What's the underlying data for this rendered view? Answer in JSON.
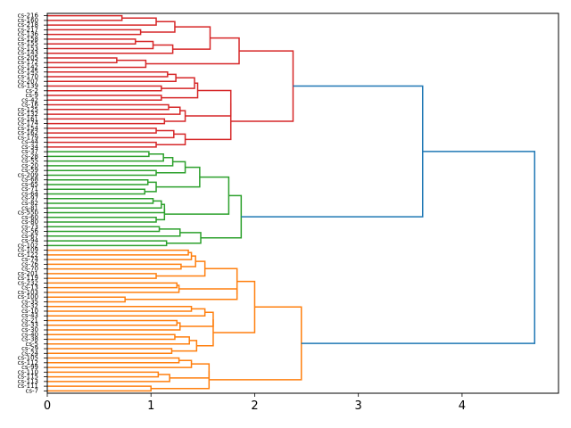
{
  "chart_data": {
    "type": "dendrogram",
    "orientation": "horizontal",
    "title": "",
    "xlabel": "",
    "ylabel": "",
    "xlim": [
      0,
      4.93
    ],
    "xticks": [
      0,
      1,
      2,
      3,
      4
    ],
    "xtick_labels": [
      "0",
      "1",
      "2",
      "3",
      "4"
    ],
    "colors": {
      "red": "#d62728",
      "green": "#2ca02c",
      "orange": "#ff7f0e",
      "link_above_threshold": "#1f77b4",
      "axes": "#000000"
    },
    "leaves": [
      "cs-216",
      "cs-160",
      "cs-218",
      "cs-217",
      "cs-136",
      "cs-158",
      "cs-155",
      "cs-153",
      "cs-143",
      "cs-205",
      "cs-172",
      "cs-142",
      "cs-145",
      "cs-170",
      "cs-207",
      "cs-139",
      "cs-2",
      "cs-9",
      "cs-42",
      "cs-16",
      "cs-125",
      "cs-132",
      "cs-161",
      "cs-174",
      "cs-154",
      "cs-162",
      "cs-179",
      "cs-44",
      "cs-34",
      "cs-37",
      "cs-28",
      "cs-55",
      "cs-20",
      "cs-59",
      "cs-209",
      "cs-68",
      "cs-65",
      "cs-71",
      "cs-64",
      "cs-97",
      "cs-82",
      "cs-81",
      "cs-55b",
      "cs-60",
      "cs-80",
      "cs-73",
      "cs-56",
      "cs-67",
      "cs-94",
      "cs-102",
      "cs-109",
      "cs-122",
      "cs-74",
      "cs-76",
      "cs-70",
      "cs-201",
      "cs-119",
      "cs-232",
      "cs-13",
      "cs-103",
      "cs-100",
      "cs-35",
      "cs-32",
      "cs-10",
      "cs-43",
      "cs-21",
      "cs-33",
      "cs-30",
      "cs-40",
      "cs-38",
      "cs-5",
      "cs-29",
      "cs-24",
      "cs-105",
      "cs-112",
      "cs-99",
      "cs-110",
      "cs-115",
      "cs-113",
      "cs-111",
      "cs-7"
    ],
    "links": [
      {
        "x": [
          0.0,
          0.72,
          0.72,
          0.0
        ],
        "y": [
          1.0,
          1.0,
          2.0,
          2.0
        ],
        "color": "red"
      },
      {
        "x": [
          0.72,
          1.05,
          1.05,
          0.0
        ],
        "y": [
          1.5,
          1.5,
          3.0,
          3.0
        ],
        "color": "red"
      },
      {
        "x": [
          0.0,
          0.9,
          0.9,
          0.0
        ],
        "y": [
          4.0,
          4.0,
          5.0,
          5.0
        ],
        "color": "red"
      },
      {
        "x": [
          1.05,
          1.23,
          1.23,
          0.9
        ],
        "y": [
          2.25,
          2.25,
          4.5,
          4.5
        ],
        "color": "red"
      },
      {
        "x": [
          0.0,
          0.85,
          0.85,
          0.0
        ],
        "y": [
          6.0,
          6.0,
          7.0,
          7.0
        ],
        "color": "red"
      },
      {
        "x": [
          0.85,
          1.02,
          1.02,
          0.0
        ],
        "y": [
          6.5,
          6.5,
          8.0,
          8.0
        ],
        "color": "red"
      },
      {
        "x": [
          1.02,
          1.21,
          1.21,
          0.0
        ],
        "y": [
          7.25,
          7.25,
          9.0,
          9.0
        ],
        "color": "red"
      },
      {
        "x": [
          1.23,
          1.57,
          1.57,
          1.21
        ],
        "y": [
          3.375,
          3.375,
          8.125,
          8.125
        ],
        "color": "red"
      },
      {
        "x": [
          0.0,
          0.67,
          0.67,
          0.0
        ],
        "y": [
          10.0,
          10.0,
          11.0,
          11.0
        ],
        "color": "red"
      },
      {
        "x": [
          0.67,
          0.95,
          0.95,
          0.0
        ],
        "y": [
          10.5,
          10.5,
          12.0,
          12.0
        ],
        "color": "red"
      },
      {
        "x": [
          1.57,
          1.85,
          1.85,
          0.95
        ],
        "y": [
          5.75,
          5.75,
          11.25,
          11.25
        ],
        "color": "red"
      },
      {
        "x": [
          0.0,
          1.16,
          1.16,
          0.0
        ],
        "y": [
          13.0,
          13.0,
          14.0,
          14.0
        ],
        "color": "red"
      },
      {
        "x": [
          1.16,
          1.24,
          1.24,
          0.0
        ],
        "y": [
          13.5,
          13.5,
          15.0,
          15.0
        ],
        "color": "red"
      },
      {
        "x": [
          0.0,
          1.1,
          1.1,
          0.0
        ],
        "y": [
          16.0,
          16.0,
          17.0,
          17.0
        ],
        "color": "red"
      },
      {
        "x": [
          1.24,
          1.42,
          1.42,
          1.1
        ],
        "y": [
          14.25,
          14.25,
          16.5,
          16.5
        ],
        "color": "red"
      },
      {
        "x": [
          0.0,
          1.1,
          1.1,
          0.0
        ],
        "y": [
          18.0,
          18.0,
          19.0,
          19.0
        ],
        "color": "red"
      },
      {
        "x": [
          1.42,
          1.45,
          1.45,
          1.1
        ],
        "y": [
          15.375,
          15.375,
          18.5,
          18.5
        ],
        "color": "red"
      },
      {
        "x": [
          0.0,
          1.17,
          1.17,
          0.0
        ],
        "y": [
          20.0,
          20.0,
          21.0,
          21.0
        ],
        "color": "red"
      },
      {
        "x": [
          1.17,
          1.28,
          1.28,
          0.0
        ],
        "y": [
          20.5,
          20.5,
          22.0,
          22.0
        ],
        "color": "red"
      },
      {
        "x": [
          0.0,
          1.13,
          1.13,
          0.0
        ],
        "y": [
          23.0,
          23.0,
          24.0,
          24.0
        ],
        "color": "red"
      },
      {
        "x": [
          1.28,
          1.33,
          1.33,
          1.13
        ],
        "y": [
          21.25,
          21.25,
          23.5,
          23.5
        ],
        "color": "red"
      },
      {
        "x": [
          1.45,
          1.77,
          1.77,
          1.33
        ],
        "y": [
          16.9375,
          16.9375,
          22.375,
          22.375
        ],
        "color": "red"
      },
      {
        "x": [
          0.0,
          1.05,
          1.05,
          0.0
        ],
        "y": [
          25.0,
          25.0,
          26.0,
          26.0
        ],
        "color": "red"
      },
      {
        "x": [
          1.05,
          1.22,
          1.22,
          0.0
        ],
        "y": [
          25.5,
          25.5,
          27.0,
          27.0
        ],
        "color": "red"
      },
      {
        "x": [
          0.0,
          1.05,
          1.05,
          0.0
        ],
        "y": [
          28.0,
          28.0,
          29.0,
          29.0
        ],
        "color": "red"
      },
      {
        "x": [
          1.22,
          1.33,
          1.33,
          1.05
        ],
        "y": [
          26.25,
          26.25,
          28.5,
          28.5
        ],
        "color": "red"
      },
      {
        "x": [
          1.77,
          1.77,
          1.77,
          1.33
        ],
        "y": [
          19.65625,
          19.65625,
          27.375,
          27.375
        ],
        "color": "red"
      },
      {
        "x": [
          1.85,
          2.37,
          2.37,
          1.77
        ],
        "y": [
          8.5,
          8.5,
          23.515625,
          23.515625
        ],
        "color": "red"
      },
      {
        "x": [
          0.0,
          0.98,
          0.98,
          0.0
        ],
        "y": [
          30.0,
          30.0,
          31.0,
          31.0
        ],
        "color": "green"
      },
      {
        "x": [
          0.98,
          1.12,
          1.12,
          0.0
        ],
        "y": [
          30.5,
          30.5,
          32.0,
          32.0
        ],
        "color": "green"
      },
      {
        "x": [
          1.12,
          1.21,
          1.21,
          0.0
        ],
        "y": [
          31.25,
          31.25,
          33.0,
          33.0
        ],
        "color": "green"
      },
      {
        "x": [
          0.0,
          1.05,
          1.05,
          0.0
        ],
        "y": [
          34.0,
          34.0,
          35.0,
          35.0
        ],
        "color": "green"
      },
      {
        "x": [
          1.21,
          1.33,
          1.33,
          1.05
        ],
        "y": [
          32.125,
          32.125,
          34.5,
          34.5
        ],
        "color": "green"
      },
      {
        "x": [
          0.0,
          0.97,
          0.97,
          0.0
        ],
        "y": [
          36.0,
          36.0,
          37.0,
          37.0
        ],
        "color": "green"
      },
      {
        "x": [
          0.0,
          0.94,
          0.94,
          0.0
        ],
        "y": [
          38.0,
          38.0,
          39.0,
          39.0
        ],
        "color": "green"
      },
      {
        "x": [
          0.97,
          1.05,
          1.05,
          0.94
        ],
        "y": [
          36.5,
          36.5,
          38.5,
          38.5
        ],
        "color": "green"
      },
      {
        "x": [
          1.33,
          1.47,
          1.47,
          1.05
        ],
        "y": [
          33.3125,
          33.3125,
          37.5,
          37.5
        ],
        "color": "green"
      },
      {
        "x": [
          0.0,
          1.02,
          1.02,
          0.0
        ],
        "y": [
          40.0,
          40.0,
          41.0,
          41.0
        ],
        "color": "green"
      },
      {
        "x": [
          1.02,
          1.1,
          1.1,
          0.0
        ],
        "y": [
          40.5,
          40.5,
          42.0,
          42.0
        ],
        "color": "green"
      },
      {
        "x": [
          1.1,
          1.13,
          1.13,
          0.0
        ],
        "y": [
          41.25,
          41.25,
          43.0,
          43.0
        ],
        "color": "green"
      },
      {
        "x": [
          0.0,
          1.05,
          1.05,
          0.0
        ],
        "y": [
          44.0,
          44.0,
          45.0,
          45.0
        ],
        "color": "green"
      },
      {
        "x": [
          1.13,
          1.13,
          1.13,
          1.05
        ],
        "y": [
          42.125,
          42.125,
          44.5,
          44.5
        ],
        "color": "green"
      },
      {
        "x": [
          1.47,
          1.75,
          1.75,
          1.13
        ],
        "y": [
          35.40625,
          35.40625,
          43.3125,
          43.3125
        ],
        "color": "green"
      },
      {
        "x": [
          0.0,
          1.08,
          1.08,
          0.0
        ],
        "y": [
          46.0,
          46.0,
          47.0,
          47.0
        ],
        "color": "green"
      },
      {
        "x": [
          1.08,
          1.28,
          1.28,
          0.0
        ],
        "y": [
          46.5,
          46.5,
          48.0,
          48.0
        ],
        "color": "green"
      },
      {
        "x": [
          0.0,
          1.15,
          1.15,
          0.0
        ],
        "y": [
          49.0,
          49.0,
          50.0,
          50.0
        ],
        "color": "green"
      },
      {
        "x": [
          1.28,
          1.48,
          1.48,
          1.15
        ],
        "y": [
          47.25,
          47.25,
          49.5,
          49.5
        ],
        "color": "green"
      },
      {
        "x": [
          1.75,
          1.87,
          1.87,
          1.48
        ],
        "y": [
          39.359375,
          39.359375,
          48.375,
          48.375
        ],
        "color": "green"
      },
      {
        "x": [
          0.0,
          1.36,
          1.36,
          0.0
        ],
        "y": [
          51.0,
          51.0,
          52.0,
          52.0
        ],
        "color": "orange"
      },
      {
        "x": [
          1.36,
          1.39,
          1.39,
          0.0
        ],
        "y": [
          51.5,
          51.5,
          53.0,
          53.0
        ],
        "color": "orange"
      },
      {
        "x": [
          0.0,
          1.29,
          1.29,
          0.0
        ],
        "y": [
          54.0,
          54.0,
          55.0,
          55.0
        ],
        "color": "orange"
      },
      {
        "x": [
          1.39,
          1.43,
          1.43,
          1.29
        ],
        "y": [
          52.25,
          52.25,
          54.5,
          54.5
        ],
        "color": "orange"
      },
      {
        "x": [
          0.0,
          1.05,
          1.05,
          0.0
        ],
        "y": [
          56.0,
          56.0,
          57.0,
          57.0
        ],
        "color": "orange"
      },
      {
        "x": [
          1.43,
          1.52,
          1.52,
          1.05
        ],
        "y": [
          53.375,
          53.375,
          56.5,
          56.5
        ],
        "color": "orange"
      },
      {
        "x": [
          0.0,
          1.25,
          1.25,
          0.0
        ],
        "y": [
          58.0,
          58.0,
          59.0,
          59.0
        ],
        "color": "orange"
      },
      {
        "x": [
          1.25,
          1.27,
          1.27,
          0.0
        ],
        "y": [
          58.5,
          58.5,
          60.0,
          60.0
        ],
        "color": "orange"
      },
      {
        "x": [
          0.0,
          0.75,
          0.75,
          0.0
        ],
        "y": [
          61.0,
          61.0,
          62.0,
          62.0
        ],
        "color": "orange"
      },
      {
        "x": [
          1.27,
          1.83,
          1.83,
          0.75
        ],
        "y": [
          59.25,
          59.25,
          61.5,
          61.5
        ],
        "color": "orange"
      },
      {
        "x": [
          1.52,
          1.83,
          1.83,
          1.83
        ],
        "y": [
          54.9375,
          54.9375,
          60.375,
          60.375
        ],
        "color": "orange"
      },
      {
        "x": [
          0.0,
          1.39,
          1.39,
          0.0
        ],
        "y": [
          63.0,
          63.0,
          64.0,
          64.0
        ],
        "color": "orange"
      },
      {
        "x": [
          0.0,
          1.25,
          1.25,
          0.0
        ],
        "y": [
          66.0,
          66.0,
          67.0,
          67.0
        ],
        "color": "orange"
      },
      {
        "x": [
          1.25,
          1.28,
          1.28,
          0.0
        ],
        "y": [
          66.5,
          66.5,
          68.0,
          68.0
        ],
        "color": "orange"
      },
      {
        "x": [
          1.39,
          1.52,
          1.52,
          0.0
        ],
        "y": [
          63.5,
          63.5,
          65.0,
          65.0
        ],
        "color": "orange"
      },
      {
        "x": [
          1.52,
          1.6,
          1.6,
          1.28
        ],
        "y": [
          64.25,
          64.25,
          67.25,
          67.25
        ],
        "color": "orange"
      },
      {
        "x": [
          0.0,
          1.23,
          1.23,
          0.0
        ],
        "y": [
          69.0,
          69.0,
          70.0,
          70.0
        ],
        "color": "orange"
      },
      {
        "x": [
          1.23,
          1.37,
          1.37,
          0.0
        ],
        "y": [
          69.5,
          69.5,
          71.0,
          71.0
        ],
        "color": "orange"
      },
      {
        "x": [
          0.0,
          1.2,
          1.2,
          0.0
        ],
        "y": [
          72.0,
          72.0,
          73.0,
          73.0
        ],
        "color": "orange"
      },
      {
        "x": [
          1.37,
          1.44,
          1.44,
          1.2
        ],
        "y": [
          70.25,
          70.25,
          72.5,
          72.5
        ],
        "color": "orange"
      },
      {
        "x": [
          1.6,
          1.6,
          1.6,
          1.44
        ],
        "y": [
          65.75,
          65.75,
          71.375,
          71.375
        ],
        "color": "orange"
      },
      {
        "x": [
          1.83,
          2.0,
          2.0,
          1.6
        ],
        "y": [
          57.65625,
          57.65625,
          68.5625,
          68.5625
        ],
        "color": "orange"
      },
      {
        "x": [
          0.0,
          1.27,
          1.27,
          0.0
        ],
        "y": [
          74.0,
          74.0,
          75.0,
          75.0
        ],
        "color": "orange"
      },
      {
        "x": [
          1.27,
          1.39,
          1.39,
          0.0
        ],
        "y": [
          74.5,
          74.5,
          76.0,
          76.0
        ],
        "color": "orange"
      },
      {
        "x": [
          0.0,
          1.07,
          1.07,
          0.0
        ],
        "y": [
          77.0,
          77.0,
          78.0,
          78.0
        ],
        "color": "orange"
      },
      {
        "x": [
          1.07,
          1.18,
          1.18,
          0.0
        ],
        "y": [
          77.5,
          77.5,
          79.0,
          79.0
        ],
        "color": "orange"
      },
      {
        "x": [
          1.39,
          1.56,
          1.56,
          1.18
        ],
        "y": [
          75.25,
          75.25,
          78.25,
          78.25
        ],
        "color": "orange"
      },
      {
        "x": [
          0.0,
          1.0,
          1.0,
          0.0
        ],
        "y": [
          80.0,
          80.0,
          81.0,
          81.0
        ],
        "color": "orange"
      },
      {
        "x": [
          1.56,
          1.56,
          1.56,
          1.0
        ],
        "y": [
          76.75,
          76.75,
          80.5,
          80.5
        ],
        "color": "orange"
      },
      {
        "x": [
          2.0,
          2.45,
          2.45,
          1.56
        ],
        "y": [
          63.109375,
          63.109375,
          78.625,
          78.625
        ],
        "color": "orange"
      },
      {
        "x": [
          2.37,
          3.62,
          3.62,
          1.87
        ],
        "y": [
          16.0078125,
          16.0078125,
          43.8671875,
          43.8671875
        ],
        "color": "link_above_threshold"
      },
      {
        "x": [
          3.62,
          4.7,
          4.7,
          2.45
        ],
        "y": [
          29.9375,
          29.9375,
          70.8671875,
          70.8671875
        ],
        "color": "link_above_threshold"
      }
    ]
  }
}
